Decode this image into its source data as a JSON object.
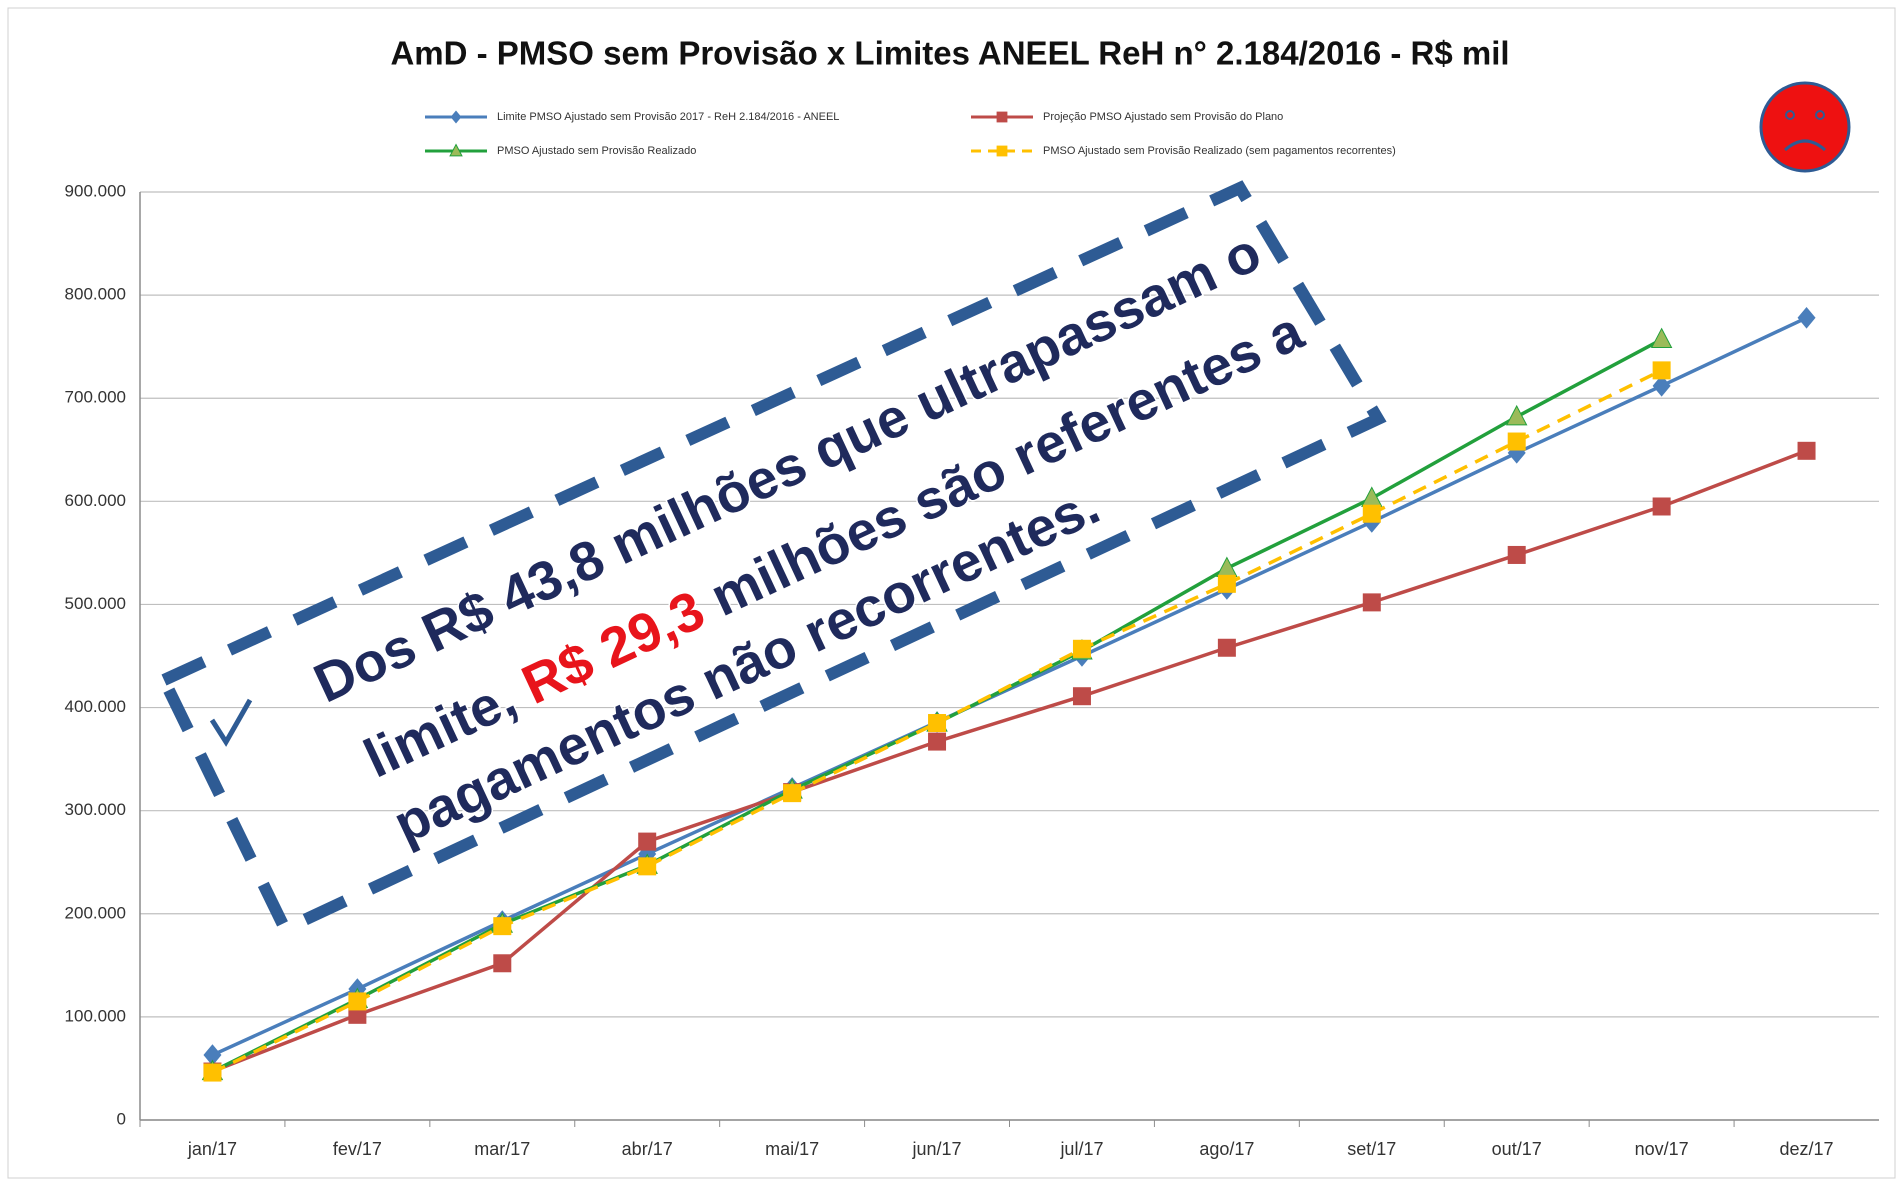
{
  "chart_data": {
    "type": "line",
    "title": "AmD - PMSO sem Provisão  x Limites ANEEL ReH n° 2.184/2016 - R$ mil",
    "categories": [
      "jan/17",
      "fev/17",
      "mar/17",
      "abr/17",
      "mai/17",
      "jun/17",
      "jul/17",
      "ago/17",
      "set/17",
      "out/17",
      "nov/17",
      "dez/17"
    ],
    "series": [
      {
        "name": "Limite PMSO Ajustado sem Provisão 2017 - ReH 2.184/2016 - ANEEL",
        "color": "#4a7ebb",
        "marker": "diamond",
        "dashed": false,
        "values": [
          63000,
          127000,
          193000,
          258000,
          322000,
          386000,
          450000,
          515000,
          580000,
          647000,
          712000,
          778000
        ]
      },
      {
        "name": "Projeção PMSO Ajustado sem Provisão do Plano",
        "color": "#be4b48",
        "marker": "square",
        "dashed": false,
        "values": [
          47000,
          102000,
          152000,
          270000,
          318000,
          367000,
          411000,
          458000,
          502000,
          548000,
          595000,
          649000
        ]
      },
      {
        "name": "PMSO Ajustado sem Provisão Realizado",
        "color": "#22a03c",
        "marker": "triangle",
        "dashed": false,
        "values": [
          47000,
          117000,
          190000,
          247000,
          320000,
          385000,
          455000,
          535000,
          603000,
          682000,
          757000,
          null
        ]
      },
      {
        "name": "PMSO Ajustado sem Provisão Realizado (sem pagamentos recorrentes)",
        "color": "#ffc000",
        "marker": "square",
        "dashed": true,
        "values": [
          46000,
          115000,
          188000,
          246000,
          317000,
          385000,
          457000,
          520000,
          588000,
          658000,
          727000,
          null
        ]
      }
    ],
    "ylim": [
      0,
      900000
    ],
    "yticks": [
      0,
      {
        "value": 100000,
        "label": "100.000"
      },
      {
        "value": 200000,
        "label": "200.000"
      },
      {
        "value": 300000,
        "label": "300.000"
      },
      {
        "value": 400000,
        "label": "400.000"
      },
      {
        "value": 500000,
        "label": "500.000"
      },
      {
        "value": 600000,
        "label": "600.000"
      },
      {
        "value": 700000,
        "label": "700.000"
      },
      {
        "value": 800000,
        "label": "800.000"
      },
      {
        "value": 900000,
        "label": "900.000"
      }
    ],
    "grid": true,
    "legend": "top",
    "annotation": {
      "lines": [
        [
          {
            "text": "Dos R$ 43,8 milhões que ultrapassam o",
            "color": "#1f2a5c"
          }
        ],
        [
          {
            "text": "limite, ",
            "color": "#1f2a5c"
          },
          {
            "text": "R$ 29,3",
            "color": "#e8141b"
          },
          {
            "text": " milhões são referentes a",
            "color": "#1f2a5c"
          }
        ],
        [
          {
            "text": "pagamentos não recorrentes.",
            "color": "#1f2a5c"
          }
        ]
      ]
    }
  }
}
